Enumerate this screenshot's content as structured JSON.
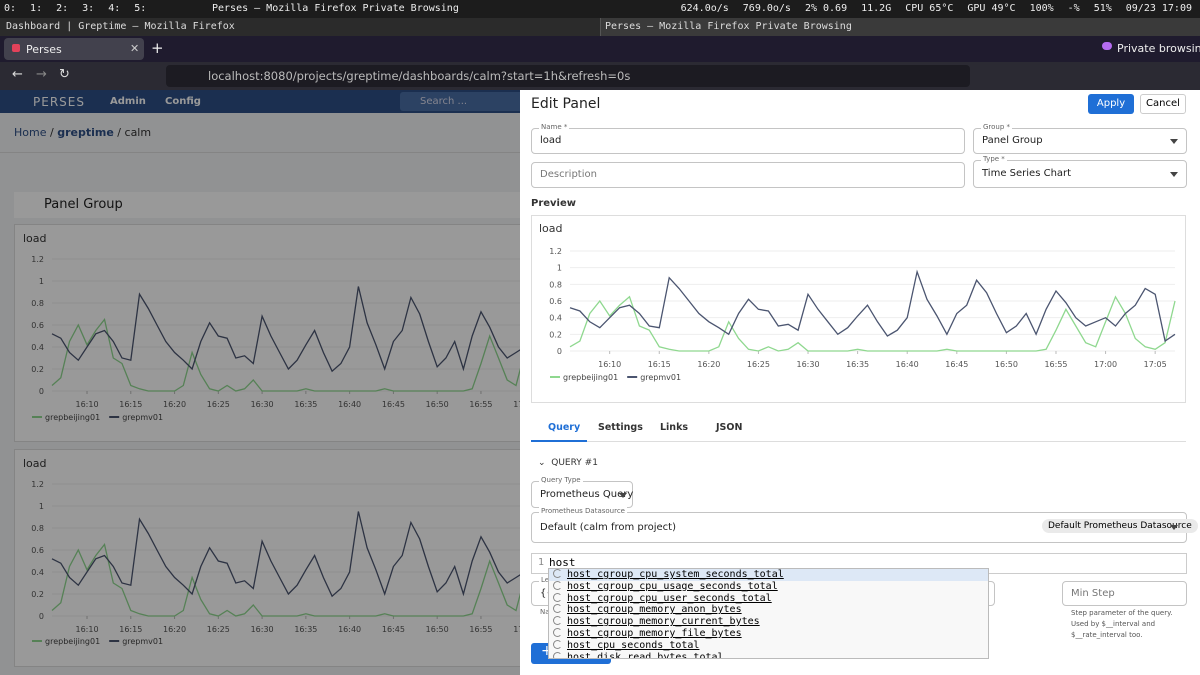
{
  "system_bar": {
    "workspaces": [
      "0:",
      "1:",
      "2:",
      "3:",
      "4:",
      "5:"
    ],
    "window_title": "Perses — Mozilla Firefox Private Browsing",
    "stats": [
      "624.0o/s",
      "769.0o/s",
      "2% 0.69",
      "11.2G",
      "CPU 65°C",
      "GPU 49°C",
      "100%",
      "-%",
      "51%",
      "09/23 17:09"
    ]
  },
  "browser": {
    "other_window": "Dashboard | Greptime — Mozilla Firefox",
    "window": "Perses — Mozilla Firefox Private Browsing",
    "tab": "Perses",
    "new_tab": "+",
    "private": "Private browsing",
    "url": "localhost:8080/projects/greptime/dashboards/calm?start=1h&refresh=0s"
  },
  "app": {
    "brand": "PERSES",
    "nav": [
      "Admin",
      "Config"
    ],
    "search": "Search ...",
    "breadcrumb": [
      "Home",
      "/",
      "greptime",
      "/",
      "calm"
    ],
    "group": "Panel Group"
  },
  "drawer": {
    "title": "Edit Panel",
    "apply": "Apply",
    "cancel": "Cancel",
    "name_label": "Name *",
    "name": "load",
    "group_label": "Group *",
    "group": "Panel Group",
    "description": "Description",
    "type_label": "Type *",
    "type": "Time Series Chart",
    "preview": "Preview",
    "tabs": [
      "Query",
      "Settings",
      "Links",
      "JSON"
    ],
    "query_header": "QUERY #1",
    "query_type_label": "Query Type",
    "query_type": "Prometheus Query",
    "datasource_label": "Prometheus Datasource",
    "datasource": "Default (calm from project)",
    "datasource_chip": "Default Prometheus Datasource",
    "line_number": "1",
    "query": "host_",
    "legend_label": "Le",
    "legend_value": "{{h",
    "name_hint": "Na",
    "min_step": "Min Step",
    "min_step_help": "Step parameter of the query. Used by $__interval and $__rate_interval too.",
    "add": "+"
  },
  "autocomplete": [
    "host_cgroup_cpu_system_seconds_total",
    "host_cgroup_cpu_usage_seconds_total",
    "host_cgroup_cpu_user_seconds_total",
    "host_cgroup_memory_anon_bytes",
    "host_cgroup_memory_current_bytes",
    "host_cgroup_memory_file_bytes",
    "host_cpu_seconds_total",
    "host_disk_read_bytes_total"
  ],
  "chart_data": {
    "type": "line",
    "title": "load",
    "x": [
      "16:06",
      "16:07",
      "16:08",
      "16:09",
      "16:10",
      "16:11",
      "16:12",
      "16:13",
      "16:14",
      "16:15",
      "16:16",
      "16:17",
      "16:18",
      "16:19",
      "16:20",
      "16:21",
      "16:22",
      "16:23",
      "16:24",
      "16:25",
      "16:26",
      "16:27",
      "16:28",
      "16:29",
      "16:30",
      "16:31",
      "16:32",
      "16:33",
      "16:34",
      "16:35",
      "16:36",
      "16:37",
      "16:38",
      "16:39",
      "16:40",
      "16:41",
      "16:42",
      "16:43",
      "16:44",
      "16:45",
      "16:46",
      "16:47",
      "16:48",
      "16:49",
      "16:50",
      "16:51",
      "16:52",
      "16:53",
      "16:54",
      "16:55",
      "16:56",
      "16:57",
      "16:58",
      "16:59",
      "17:00",
      "17:01",
      "17:02",
      "17:03",
      "17:04",
      "17:05",
      "17:06",
      "17:07"
    ],
    "xlim": [
      "16:06",
      "17:07"
    ],
    "xticks": [
      "16:10",
      "16:15",
      "16:20",
      "16:25",
      "16:30",
      "16:35",
      "16:40",
      "16:45",
      "16:50",
      "16:55",
      "17:00",
      "17:05"
    ],
    "ylim": [
      0,
      1.2
    ],
    "yticks": [
      0,
      0.2,
      0.4,
      0.6,
      0.8,
      1,
      1.2
    ],
    "grid": true,
    "series": [
      {
        "name": "grepbeijing01",
        "color": "#8fd88f",
        "values": [
          0.05,
          0.12,
          0.45,
          0.6,
          0.42,
          0.55,
          0.65,
          0.3,
          0.25,
          0.05,
          0.02,
          0,
          0,
          0,
          0,
          0.05,
          0.35,
          0.15,
          0.02,
          0,
          0.05,
          0,
          0.02,
          0.1,
          0,
          0,
          0,
          0,
          0,
          0.02,
          0,
          0,
          0,
          0,
          0,
          0,
          0,
          0,
          0.02,
          0,
          0,
          0,
          0,
          0,
          0,
          0,
          0,
          0,
          0.02,
          0.25,
          0.5,
          0.3,
          0.1,
          0.05,
          0.35,
          0.65,
          0.45,
          0.15,
          0.05,
          0.02,
          0.1,
          0.6
        ]
      },
      {
        "name": "grepmv01",
        "color": "#4b5570",
        "values": [
          0.52,
          0.48,
          0.35,
          0.28,
          0.4,
          0.52,
          0.55,
          0.45,
          0.3,
          0.28,
          0.88,
          0.75,
          0.6,
          0.45,
          0.35,
          0.28,
          0.2,
          0.45,
          0.62,
          0.5,
          0.48,
          0.3,
          0.32,
          0.25,
          0.68,
          0.5,
          0.35,
          0.2,
          0.28,
          0.42,
          0.55,
          0.35,
          0.18,
          0.25,
          0.4,
          0.95,
          0.62,
          0.42,
          0.2,
          0.45,
          0.55,
          0.85,
          0.7,
          0.45,
          0.22,
          0.3,
          0.45,
          0.2,
          0.5,
          0.72,
          0.58,
          0.4,
          0.3,
          0.35,
          0.4,
          0.3,
          0.45,
          0.55,
          0.75,
          0.68,
          0.12,
          0.2
        ]
      }
    ]
  }
}
